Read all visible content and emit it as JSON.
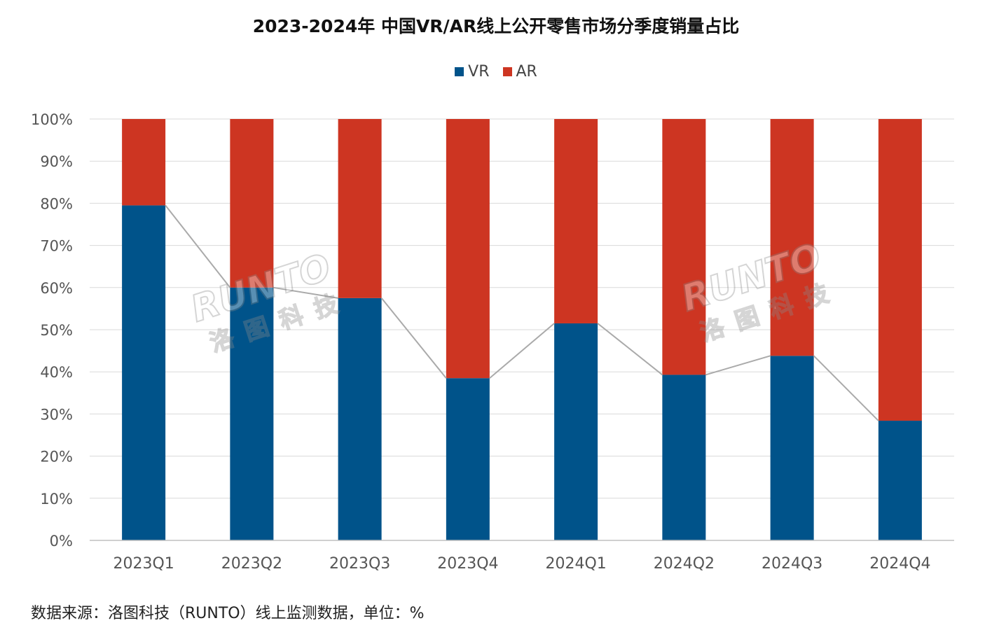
{
  "chart_data": {
    "type": "bar",
    "stacked": true,
    "title": "2023-2024年 中国VR/AR线上公开零售市场分季度销量占比",
    "categories": [
      "2023Q1",
      "2023Q2",
      "2023Q3",
      "2023Q4",
      "2024Q1",
      "2024Q2",
      "2024Q3",
      "2024Q4"
    ],
    "series": [
      {
        "name": "VR",
        "color": "#00538a",
        "values": [
          79.5,
          60,
          57.5,
          38.5,
          51.5,
          39.3,
          43.8,
          28.4
        ]
      },
      {
        "name": "AR",
        "color": "#cd3522",
        "values": [
          20.5,
          40,
          42.5,
          61.5,
          48.5,
          60.7,
          56.2,
          71.6
        ]
      }
    ],
    "ylim": [
      0,
      100
    ],
    "yticks": [
      "0%",
      "10%",
      "20%",
      "30%",
      "40%",
      "50%",
      "60%",
      "70%",
      "80%",
      "90%",
      "100%"
    ],
    "grid": true,
    "legend_position": "top",
    "connector_line_color": "#aaaaaa",
    "watermark": {
      "brand": "RUNTO",
      "cn": "洛图科技"
    }
  },
  "source_note": "数据来源：洛图科技（RUNTO）线上监测数据，单位：%"
}
